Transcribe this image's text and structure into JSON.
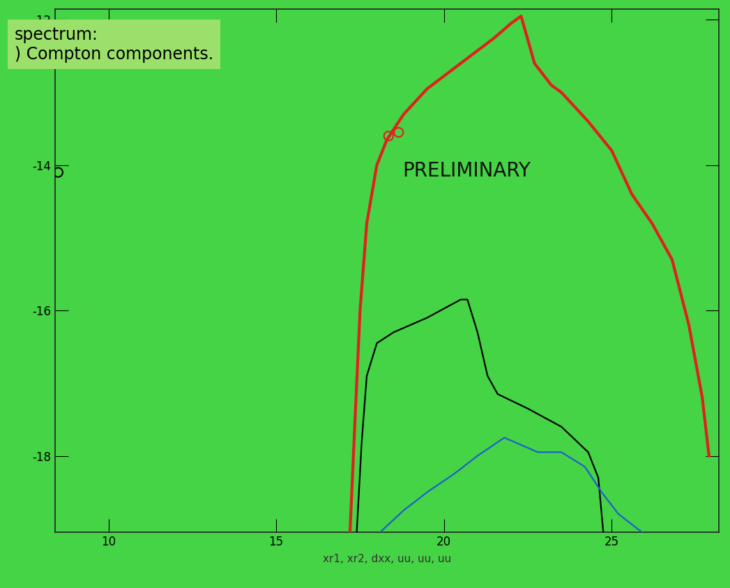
{
  "chart_data": {
    "type": "line",
    "xlabel": "xr1, xr2, dxx, uu, uu, uu",
    "annotations": [
      "spectrum:\n) Compton components.",
      "PRELIMINARY"
    ],
    "xlim": [
      8.4,
      28.2
    ],
    "ylim": [
      -19.05,
      -11.85
    ],
    "xticks": [
      10,
      15,
      20,
      25
    ],
    "yticks": [
      -18,
      -16,
      -14,
      -12
    ],
    "series": [
      {
        "type": "line",
        "color": "#e0201b",
        "x": [
          17.2,
          17.35,
          17.5,
          17.7,
          18.0,
          18.3,
          18.8,
          19.5,
          20.5,
          21.5,
          22.0,
          22.3,
          22.7,
          23.2,
          23.5,
          24.3,
          25.0,
          25.6,
          26.2,
          26.8,
          27.3,
          27.7,
          27.9
        ],
        "values": [
          -19.05,
          -17.5,
          -16.0,
          -14.8,
          -14.0,
          -13.65,
          -13.3,
          -12.95,
          -12.6,
          -12.25,
          -12.05,
          -11.95,
          -12.6,
          -12.9,
          -13.0,
          -13.4,
          -13.8,
          -14.4,
          -14.8,
          -15.3,
          -16.2,
          -17.2,
          -18.0
        ]
      },
      {
        "type": "line",
        "color": "#000000",
        "x": [
          17.4,
          17.55,
          17.7,
          18.0,
          18.5,
          19.5,
          20.5,
          20.7,
          21.0,
          21.3,
          21.6,
          22.5,
          23.5,
          24.3,
          24.6,
          24.75
        ],
        "values": [
          -19.05,
          -17.8,
          -16.9,
          -16.45,
          -16.3,
          -16.1,
          -15.85,
          -15.85,
          -16.3,
          -16.9,
          -17.15,
          -17.35,
          -17.6,
          -17.95,
          -18.3,
          -19.05
        ]
      },
      {
        "type": "line",
        "color": "#1f5fd0",
        "x": [
          18.1,
          18.8,
          19.5,
          20.3,
          21.0,
          21.8,
          22.3,
          22.8,
          23.5,
          24.2,
          24.7,
          25.2,
          25.9
        ],
        "values": [
          -19.05,
          -18.75,
          -18.5,
          -18.25,
          -18.0,
          -17.75,
          -17.85,
          -17.95,
          -17.95,
          -18.15,
          -18.5,
          -18.8,
          -19.05
        ]
      },
      {
        "type": "scatter",
        "marker": "o",
        "color": "#e0201b",
        "x": [
          18.35,
          18.65
        ],
        "values": [
          -13.6,
          -13.55
        ]
      },
      {
        "type": "scatter",
        "marker": "o",
        "color": "#000000",
        "x": [
          8.5
        ],
        "values": [
          -14.1
        ]
      }
    ]
  }
}
